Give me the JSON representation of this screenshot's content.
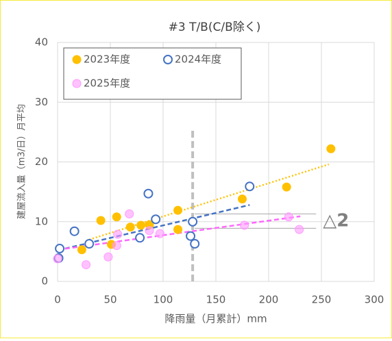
{
  "chart_data": {
    "type": "scatter",
    "title": "#3 T/B(C/B除く)",
    "x_label": "降雨量（月累計）mm",
    "y_label": "建屋流入量（m3/日）月平均",
    "xlim": [
      0,
      300
    ],
    "xticks": [
      0,
      50,
      100,
      150,
      200,
      250,
      300
    ],
    "ylim": [
      0,
      40
    ],
    "yticks": [
      0,
      10,
      20,
      30,
      40
    ],
    "grid": true,
    "legend": "upper left",
    "series": [
      {
        "name": "2023年度",
        "color": "#FFC000",
        "hollow": false,
        "x": [
          23,
          41,
          51,
          56,
          69,
          79,
          87,
          114,
          114,
          175,
          217,
          259
        ],
        "values": [
          5.3,
          10.2,
          6.2,
          10.8,
          9.1,
          9.4,
          9.5,
          11.9,
          8.7,
          13.8,
          15.8,
          22.2
        ]
      },
      {
        "name": "2024年度",
        "color": "#4472C4",
        "hollow": true,
        "x": [
          1,
          2,
          16,
          30,
          78,
          86,
          93,
          126,
          128,
          130,
          182
        ],
        "values": [
          3.9,
          5.5,
          8.4,
          6.3,
          7.3,
          14.7,
          10.4,
          7.6,
          10,
          6.3,
          15.9
        ]
      },
      {
        "name": "2025年度",
        "color": "#FF99FF",
        "hollow": false,
        "x": [
          0,
          27,
          48,
          56,
          57,
          68,
          87,
          97,
          177,
          219,
          229
        ],
        "values": [
          3.8,
          2.8,
          4.1,
          6,
          7.9,
          11.3,
          8.5,
          8,
          9.4,
          10.8,
          8.7
        ]
      }
    ],
    "trendlines": [
      {
        "color": "#FFC000",
        "style": "dotted",
        "x": [
          30,
          257
        ],
        "values": [
          7.0,
          19.6
        ]
      },
      {
        "color": "#4472C4",
        "style": "dashed",
        "x": [
          0,
          182
        ],
        "values": [
          5.2,
          12.8
        ]
      },
      {
        "color": "#FF66FF",
        "style": "dashed",
        "x": [
          0,
          230
        ],
        "values": [
          5.3,
          10.9
        ]
      }
    ],
    "threshold_line": {
      "x": 128,
      "values": [
        0,
        25.3
      ],
      "color": "#BFBFBF"
    },
    "annotation": {
      "text": "△2",
      "x": [
        130,
        245
      ],
      "values": [
        11.3,
        8.9
      ]
    }
  }
}
